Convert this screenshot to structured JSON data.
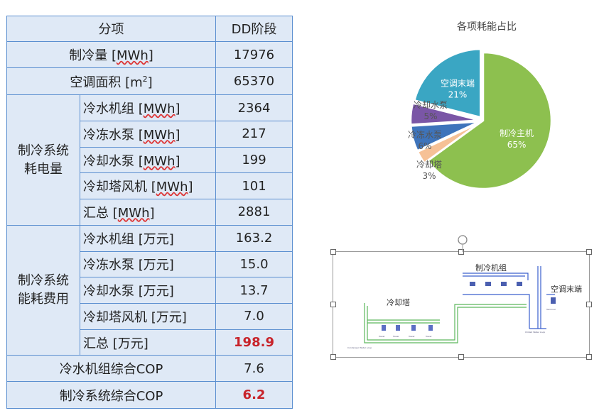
{
  "table": {
    "header": {
      "item": "分项",
      "value": "DD阶段"
    },
    "cooling_capacity": {
      "label": "制冷量 [",
      "unit": "MWh",
      "label_end": "]",
      "value": "17976"
    },
    "ac_area": {
      "label": "空调面积 [m",
      "sup": "2",
      "label_end": "]",
      "value": "65370"
    },
    "power_group": {
      "label": "制冷系统耗电量",
      "rows": [
        {
          "label": "冷水机组 [",
          "unit": "MWh",
          "end": "]",
          "value": "2364"
        },
        {
          "label": "冷冻水泵 [",
          "unit": "MWh",
          "end": "]",
          "value": "217"
        },
        {
          "label": "冷却水泵 [",
          "unit": "MWh",
          "end": "]",
          "value": "199"
        },
        {
          "label": "冷却塔风机 [",
          "unit": "MWh",
          "end": "]",
          "value": "101"
        },
        {
          "label": "汇总 [",
          "unit": "MWh",
          "end": "]",
          "value": "2881"
        }
      ]
    },
    "cost_group": {
      "label": "制冷系统能耗费用",
      "rows": [
        {
          "label": "冷水机组 [万元]",
          "value": "163.2"
        },
        {
          "label": "冷冻水泵  [万元]",
          "value": "15.0"
        },
        {
          "label": "冷却水泵  [万元]",
          "value": "13.7"
        },
        {
          "label": "冷却塔风机  [万元]",
          "value": "7.0"
        },
        {
          "label": "汇总  [万元]",
          "value": "198.9"
        }
      ]
    },
    "chiller_cop": {
      "label": "冷水机组综合COP",
      "value": "7.6"
    },
    "system_cop": {
      "label": "制冷系统综合COP",
      "value": "6.2"
    },
    "highlight_color": "#c8232a"
  },
  "chart_data": {
    "type": "pie",
    "title": "各项耗能占比",
    "slices": [
      {
        "name": "制冷主机",
        "value": 65,
        "label": "65%",
        "color": "#8dc04f"
      },
      {
        "name": "冷却塔",
        "value": 3,
        "label": "3%",
        "color": "#f6c196"
      },
      {
        "name": "冷冻水泵",
        "value": 6,
        "label": "6%",
        "color": "#3e74bb"
      },
      {
        "name": "冷却水泵",
        "value": 5,
        "label": "5%",
        "color": "#7a56a6"
      },
      {
        "name": "空调末端",
        "value": 21,
        "label": "21%",
        "color": "#3aa6c3"
      }
    ],
    "start_angle_deg": 0,
    "direction": "clockwise",
    "exploded": true
  },
  "schematic": {
    "cooling_tower_label": "冷却塔",
    "chiller_label": "制冷机组",
    "terminal_label": "空调末端"
  }
}
